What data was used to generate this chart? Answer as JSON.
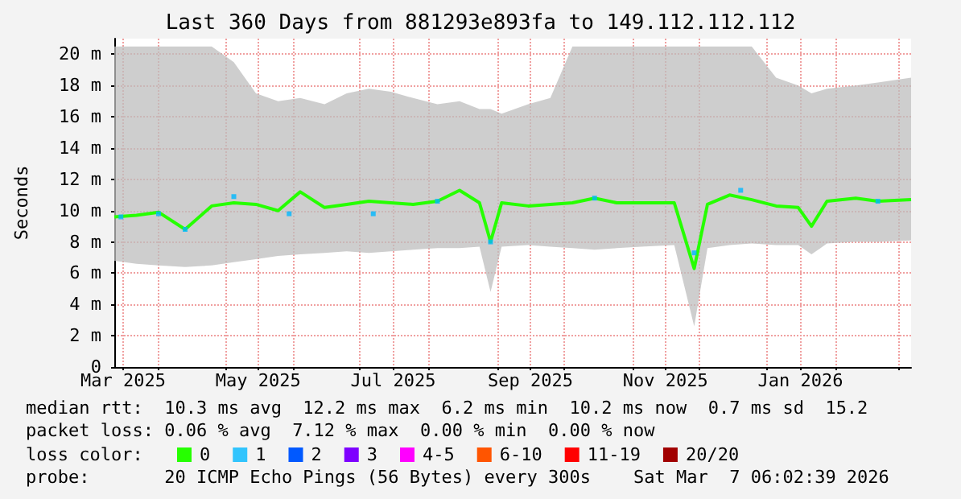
{
  "chart_data": {
    "type": "line",
    "title": "Last 360 Days from 881293e893fa to 149.112.112.112",
    "ylabel": "Seconds",
    "legend_title": "loss color:",
    "x": [
      "2025-03-12",
      "2025-03-22",
      "2025-04-01",
      "2025-04-13",
      "2025-04-25",
      "2025-05-05",
      "2025-05-15",
      "2025-05-25",
      "2025-06-04",
      "2025-06-15",
      "2025-06-25",
      "2025-07-05",
      "2025-07-15",
      "2025-07-25",
      "2025-08-05",
      "2025-08-15",
      "2025-08-24",
      "2025-08-29",
      "2025-09-03",
      "2025-09-15",
      "2025-09-25",
      "2025-10-05",
      "2025-10-15",
      "2025-10-25",
      "2025-11-05",
      "2025-11-20",
      "2025-11-29",
      "2025-12-05",
      "2025-12-15",
      "2025-12-25",
      "2026-01-05",
      "2026-01-15",
      "2026-01-21",
      "2026-01-28",
      "2026-02-10",
      "2026-02-20",
      "2026-03-07"
    ],
    "series": [
      {
        "name": "0",
        "color": "#26ff00",
        "values": [
          9.6,
          9.7,
          9.9,
          8.8,
          10.3,
          10.5,
          10.4,
          10,
          11.2,
          10.2,
          10.4,
          10.6,
          10.5,
          10.4,
          10.6,
          11.3,
          10.5,
          8,
          10.5,
          10.3,
          10.4,
          10.5,
          10.8,
          10.5,
          10.5,
          10.5,
          6.3,
          10.4,
          11,
          10.7,
          10.3,
          10.2,
          9,
          10.6,
          10.8,
          10.6,
          10.7
        ],
        "lower": [
          6.8,
          6.6,
          6.5,
          6.4,
          6.5,
          6.7,
          6.9,
          7.1,
          7.2,
          7.3,
          7.4,
          7.3,
          7.4,
          7.5,
          7.6,
          7.6,
          7.7,
          4.8,
          7.7,
          7.8,
          7.7,
          7.6,
          7.5,
          7.6,
          7.7,
          7.8,
          2.6,
          7.6,
          7.8,
          7.9,
          7.8,
          7.8,
          7.2,
          7.9,
          8,
          8,
          8.1
        ],
        "upper": [
          20.5,
          20.5,
          20.5,
          20.5,
          20.5,
          19.5,
          17.5,
          17,
          17.2,
          16.8,
          17.5,
          17.8,
          17.6,
          17.2,
          16.8,
          17,
          16.5,
          16.5,
          16.2,
          16.8,
          17.2,
          20.5,
          20.5,
          20.5,
          20.5,
          20.5,
          20.5,
          20.5,
          20.5,
          20.5,
          18.5,
          18,
          17.5,
          17.8,
          18,
          18.2,
          18.5
        ]
      },
      {
        "name": "1",
        "type": "scatter",
        "color": "#00b8ff",
        "x": [
          "2025-03-15",
          "2025-04-01",
          "2025-04-13",
          "2025-05-05",
          "2025-05-30",
          "2025-07-07",
          "2025-08-05",
          "2025-08-29",
          "2025-10-15",
          "2025-11-29",
          "2025-12-20",
          "2026-02-20"
        ],
        "values": [
          9.6,
          9.8,
          8.8,
          10.9,
          9.8,
          9.8,
          10.6,
          8,
          10.8,
          7.3,
          11.3,
          10.6
        ]
      },
      {
        "name": "2",
        "color": "#0059ff",
        "values": [
          null,
          null,
          null,
          null,
          null,
          null,
          null,
          null,
          null,
          null,
          null,
          null,
          null,
          null,
          null,
          null,
          null,
          null,
          null,
          null,
          null,
          null,
          null,
          null,
          null,
          null,
          null,
          null,
          null,
          null,
          null,
          null,
          null,
          null,
          null,
          null,
          null
        ]
      },
      {
        "name": "3",
        "color": "#7e00ff",
        "values": [
          null,
          null,
          null,
          null,
          null,
          null,
          null,
          null,
          null,
          null,
          null,
          null,
          null,
          null,
          null,
          null,
          null,
          null,
          null,
          null,
          null,
          null,
          null,
          null,
          null,
          null,
          null,
          null,
          null,
          null,
          null,
          null,
          null,
          null,
          null,
          null,
          null
        ]
      },
      {
        "name": "4-5",
        "color": "#ff00ff",
        "values": [
          null,
          null,
          null,
          null,
          null,
          null,
          null,
          null,
          null,
          null,
          null,
          null,
          null,
          null,
          null,
          null,
          null,
          null,
          null,
          null,
          null,
          null,
          null,
          null,
          null,
          null,
          null,
          null,
          null,
          null,
          null,
          null,
          null,
          null,
          null,
          null,
          null
        ]
      },
      {
        "name": "6-10",
        "color": "#ff5500",
        "values": [
          null,
          null,
          null,
          null,
          null,
          null,
          null,
          null,
          null,
          null,
          null,
          null,
          null,
          null,
          null,
          null,
          null,
          null,
          null,
          null,
          null,
          null,
          null,
          null,
          null,
          null,
          null,
          null,
          null,
          null,
          null,
          null,
          null,
          null,
          null,
          null,
          null
        ]
      },
      {
        "name": "11-19",
        "color": "#ff0000",
        "values": [
          null,
          null,
          null,
          null,
          null,
          null,
          null,
          null,
          null,
          null,
          null,
          null,
          null,
          null,
          null,
          null,
          null,
          null,
          null,
          null,
          null,
          null,
          null,
          null,
          null,
          null,
          null,
          null,
          null,
          null,
          null,
          null,
          null,
          null,
          null,
          null,
          null
        ]
      },
      {
        "name": "20/20",
        "color": "#a10000",
        "values": [
          null,
          null,
          null,
          null,
          null,
          null,
          null,
          null,
          null,
          null,
          null,
          null,
          null,
          null,
          null,
          null,
          null,
          null,
          null,
          null,
          null,
          null,
          null,
          null,
          null,
          null,
          null,
          null,
          null,
          null,
          null,
          null,
          null,
          null,
          null,
          null,
          null
        ]
      }
    ],
    "xlim": [
      "2025-03-12",
      "2026-03-07"
    ],
    "xticks": [
      {
        "value": "2025-03-16",
        "label": "Mar 2025"
      },
      {
        "value": "2025-04-01",
        "label": null
      },
      {
        "value": "2025-05-01",
        "label": null
      },
      {
        "value": "2025-05-16",
        "label": "May 2025"
      },
      {
        "value": "2025-06-01",
        "label": null
      },
      {
        "value": "2025-07-01",
        "label": null
      },
      {
        "value": "2025-07-16",
        "label": "Jul 2025"
      },
      {
        "value": "2025-08-01",
        "label": null
      },
      {
        "value": "2025-09-01",
        "label": null
      },
      {
        "value": "2025-09-16",
        "label": "Sep 2025"
      },
      {
        "value": "2025-10-01",
        "label": null
      },
      {
        "value": "2025-11-01",
        "label": null
      },
      {
        "value": "2025-11-16",
        "label": "Nov 2025"
      },
      {
        "value": "2025-12-01",
        "label": null
      },
      {
        "value": "2026-01-01",
        "label": null
      },
      {
        "value": "2026-01-16",
        "label": "Jan 2026"
      },
      {
        "value": "2026-02-01",
        "label": null
      },
      {
        "value": "2026-03-01",
        "label": null
      }
    ],
    "ylim": [
      0,
      21
    ],
    "yticks": [
      0,
      {
        "value": 2,
        "label": "2 m"
      },
      {
        "value": 4,
        "label": "4 m"
      },
      {
        "value": 6,
        "label": "6 m"
      },
      {
        "value": 8,
        "label": "8 m"
      },
      {
        "value": 10,
        "label": "10 m"
      },
      {
        "value": 12,
        "label": "12 m"
      },
      {
        "value": 14,
        "label": "14 m"
      },
      {
        "value": 16,
        "label": "16 m"
      },
      {
        "value": 18,
        "label": "18 m"
      },
      {
        "value": 20,
        "label": "20 m"
      }
    ],
    "grid": true,
    "legend": "bottom",
    "annotations": [
      "median rtt:  10.3 ms avg  12.2 ms max  6.2 ms min  10.2 ms now  0.7 ms sd  15.2",
      "packet loss: 0.06 % avg  7.12 % max  0.00 % min  0.00 % now",
      "probe:       20 ICMP Echo Pings (56 Bytes) every 300s    Sat Mar  7 06:02:39 2026"
    ]
  }
}
